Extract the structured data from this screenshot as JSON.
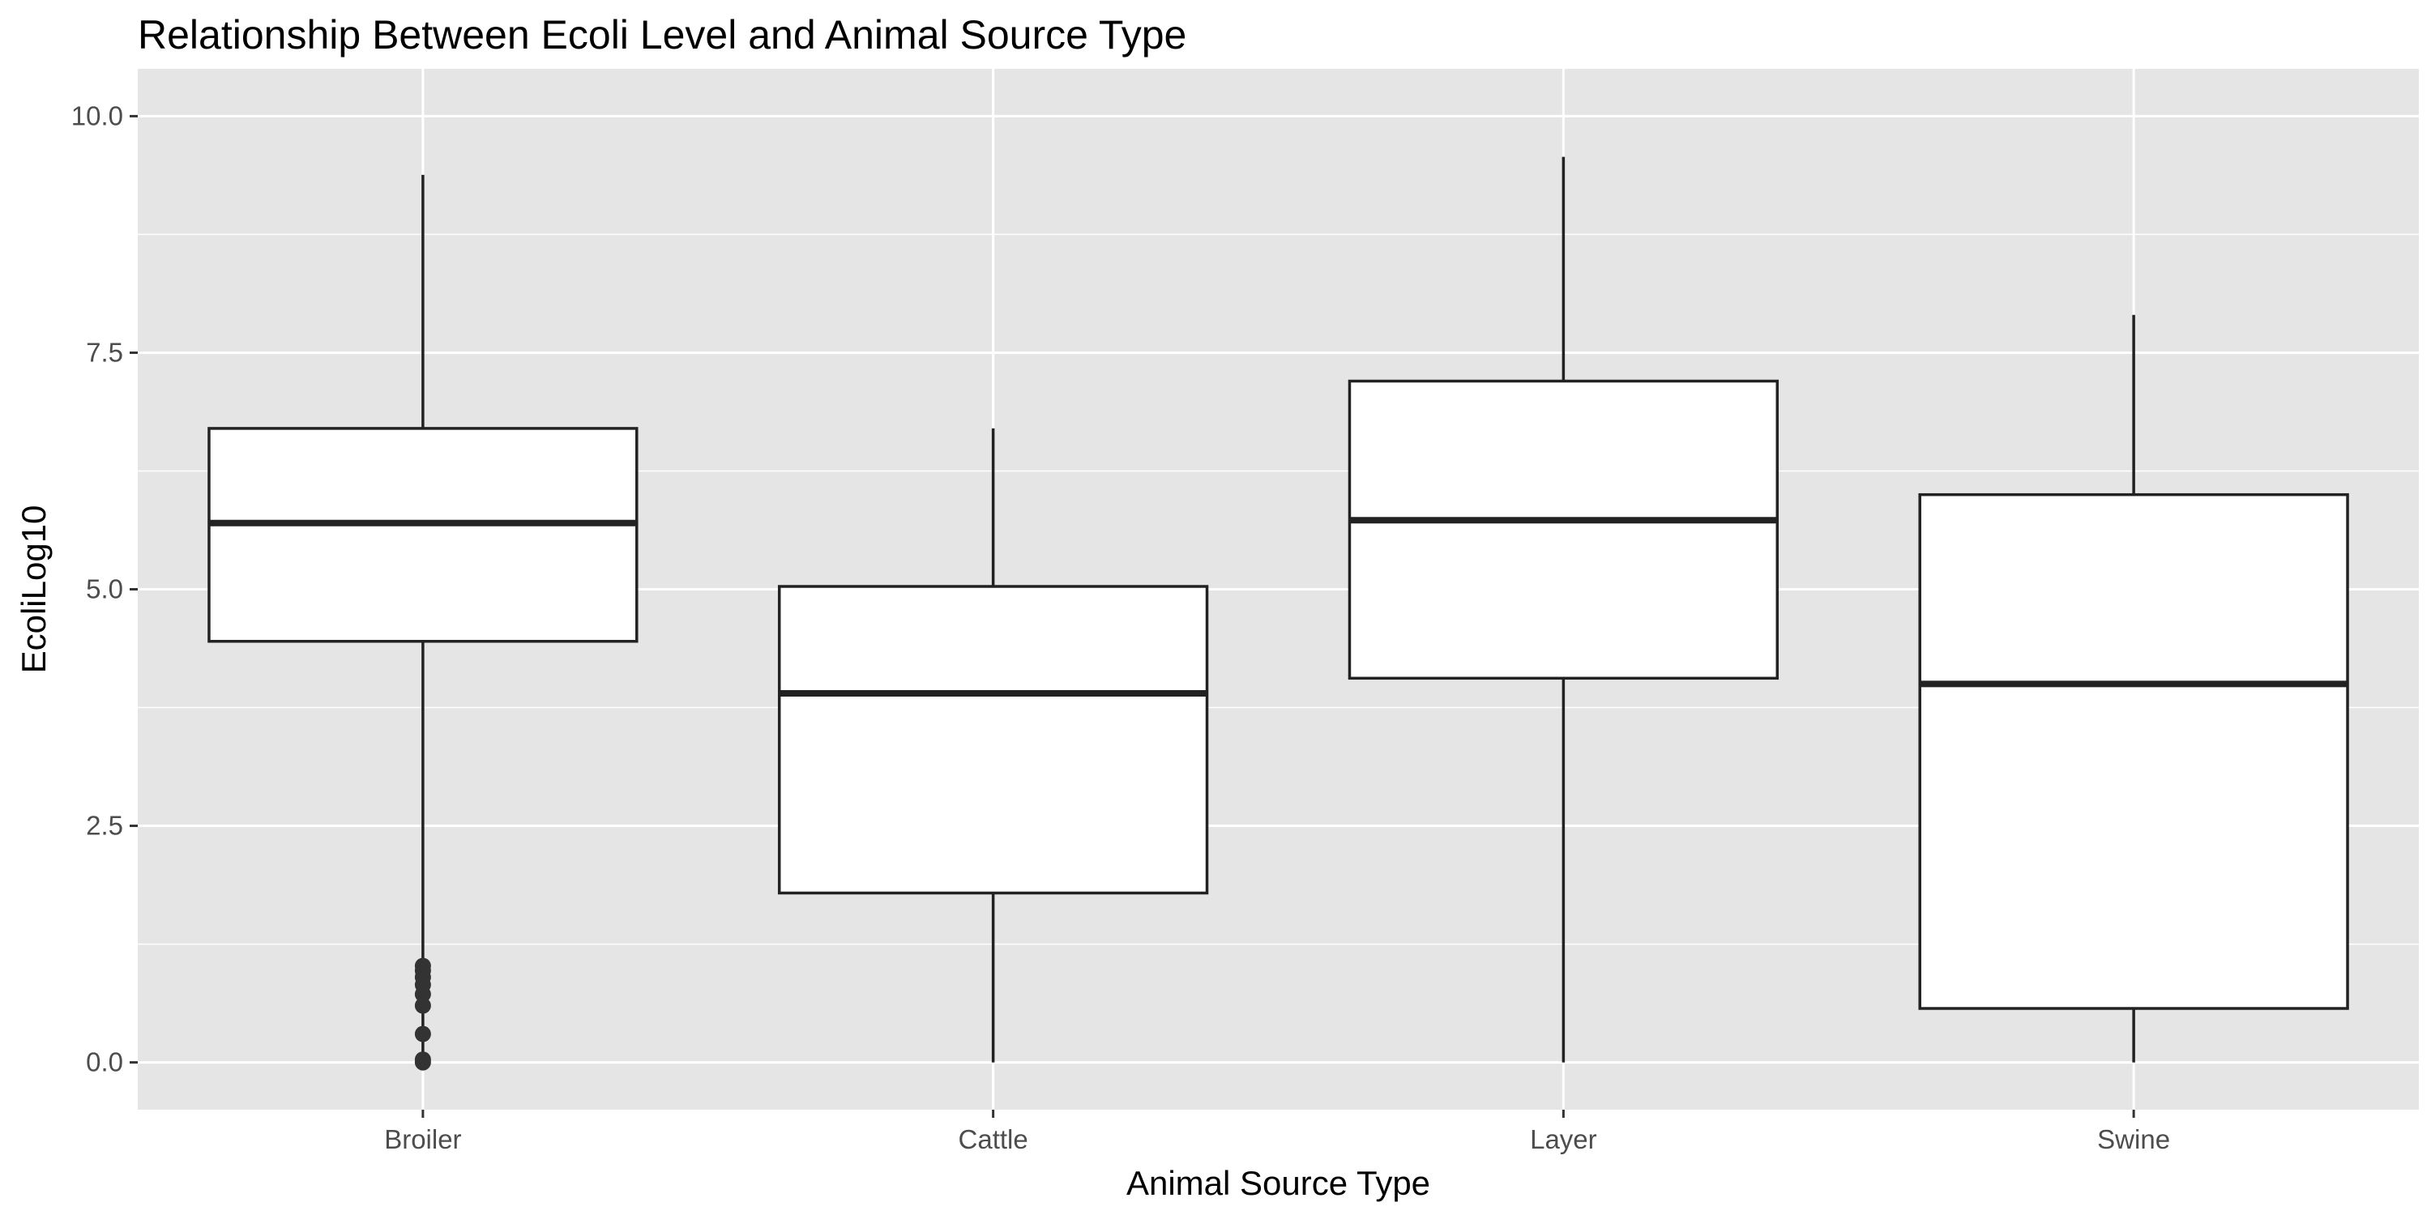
{
  "chart_data": {
    "type": "boxplot",
    "title": "Relationship Between Ecoli Level and Animal Source Type",
    "xlabel": "Animal Source Type",
    "ylabel": "EcoliLog10",
    "ylim": [
      -0.5,
      10.5
    ],
    "y_ticks": [
      "0.0",
      "2.5",
      "5.0",
      "7.5",
      "10.0"
    ],
    "grid": true,
    "legend": "none",
    "colors": {
      "panel": "#e5e5e5",
      "grid": "#ffffff",
      "box_fill": "#ffffff",
      "box_stroke": "#222222",
      "outlier": "#333333"
    },
    "categories": [
      "Broiler",
      "Cattle",
      "Layer",
      "Swine"
    ],
    "boxes": [
      {
        "category": "Broiler",
        "lower_whisker": 0.02,
        "q1": 4.45,
        "median": 5.7,
        "q3": 6.7,
        "upper_whisker": 9.38,
        "outliers": [
          0.0,
          0.03,
          0.3,
          0.6,
          0.72,
          0.82,
          0.9,
          0.97,
          1.02
        ]
      },
      {
        "category": "Cattle",
        "lower_whisker": 0.0,
        "q1": 1.79,
        "median": 3.9,
        "q3": 5.03,
        "upper_whisker": 6.7,
        "outliers": []
      },
      {
        "category": "Layer",
        "lower_whisker": 0.0,
        "q1": 4.06,
        "median": 5.73,
        "q3": 7.2,
        "upper_whisker": 9.57,
        "outliers": []
      },
      {
        "category": "Swine",
        "lower_whisker": 0.0,
        "q1": 0.57,
        "median": 4.0,
        "q3": 6.0,
        "upper_whisker": 7.9,
        "outliers": []
      }
    ]
  }
}
